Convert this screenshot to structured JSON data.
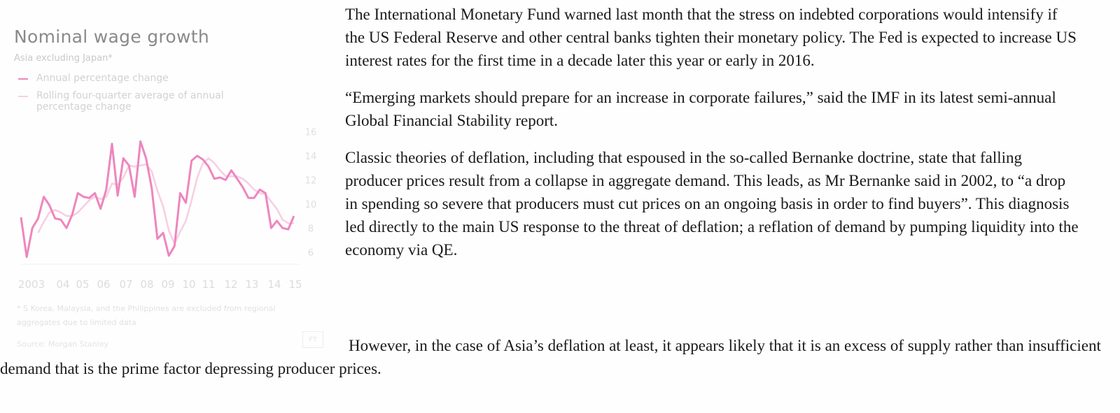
{
  "chart": {
    "title": "Nominal wage growth",
    "subtitle": "Asia excluding Japan*",
    "legend": [
      {
        "label": "Annual percentage change",
        "color": "#ee86bd"
      },
      {
        "label": "Rolling four-quarter average of annual percentage change",
        "color": "#f8cfe2"
      }
    ],
    "footnote": "* S Korea, Malaysia, and the Philippines are excluded from regional aggregates due to limited data",
    "source": "Source: Morgan Stanley",
    "logo": "FT"
  },
  "chart_data": {
    "type": "line",
    "title": "Nominal wage growth",
    "subtitle": "Asia excluding Japan*",
    "x_tick_labels": [
      "2003",
      "04",
      "05",
      "06",
      "07",
      "08",
      "09",
      "10",
      "11",
      "12",
      "13",
      "14",
      "15"
    ],
    "y_ticks": [
      6,
      8,
      10,
      12,
      14,
      16
    ],
    "ylim": [
      5,
      16.5
    ],
    "xlim": [
      2003,
      2015.25
    ],
    "y_axis_side": "right",
    "grid": false,
    "series": [
      {
        "name": "Annual percentage change",
        "color": "#ee86bd",
        "x": [
          2003,
          2003.25,
          2003.5,
          2003.75,
          2004,
          2004.25,
          2004.5,
          2004.75,
          2005,
          2005.25,
          2005.5,
          2005.75,
          2006,
          2006.25,
          2006.5,
          2006.75,
          2007,
          2007.25,
          2007.5,
          2007.75,
          2008,
          2008.25,
          2008.5,
          2008.75,
          2009,
          2009.25,
          2009.5,
          2009.75,
          2010,
          2010.25,
          2010.5,
          2010.75,
          2011,
          2011.25,
          2011.5,
          2011.75,
          2012,
          2012.25,
          2012.5,
          2012.75,
          2013,
          2013.25,
          2013.5,
          2013.75,
          2014,
          2014.25,
          2014.5,
          2014.75,
          2015
        ],
        "y": [
          8.9,
          5.6,
          8.0,
          8.8,
          10.6,
          9.9,
          8.8,
          8.7,
          8.0,
          9.1,
          10.9,
          10.6,
          10.5,
          10.9,
          9.6,
          11.2,
          15.0,
          10.7,
          13.8,
          13.2,
          10.6,
          15.2,
          13.8,
          11.3,
          7.1,
          7.6,
          5.7,
          6.5,
          10.9,
          10.1,
          13.6,
          14.0,
          13.7,
          13.1,
          12.1,
          12.2,
          12.0,
          12.8,
          12.1,
          11.4,
          10.5,
          10.5,
          11.2,
          10.9,
          8.0,
          8.6,
          8.0,
          7.9,
          9.0
        ]
      },
      {
        "name": "Rolling four-quarter average of annual percentage change",
        "color": "#f8cfe2",
        "x": [
          2003.75,
          2004,
          2004.25,
          2004.5,
          2004.75,
          2005,
          2005.25,
          2005.5,
          2005.75,
          2006,
          2006.25,
          2006.5,
          2006.75,
          2007,
          2007.25,
          2007.5,
          2007.75,
          2008,
          2008.25,
          2008.5,
          2008.75,
          2009,
          2009.25,
          2009.5,
          2009.75,
          2010,
          2010.25,
          2010.5,
          2010.75,
          2011,
          2011.25,
          2011.5,
          2011.75,
          2012,
          2012.25,
          2012.5,
          2012.75,
          2013,
          2013.25,
          2013.5,
          2013.75,
          2014,
          2014.25,
          2014.5,
          2014.75,
          2015
        ],
        "y": [
          7.6,
          8.5,
          9.3,
          9.5,
          9.3,
          9.0,
          9.0,
          9.3,
          9.8,
          10.3,
          10.6,
          10.4,
          10.6,
          11.7,
          11.6,
          12.2,
          13.2,
          13.1,
          13.2,
          13.3,
          12.7,
          11.1,
          9.8,
          7.8,
          6.7,
          7.7,
          8.6,
          10.3,
          12.2,
          13.4,
          13.8,
          13.4,
          12.8,
          12.3,
          12.3,
          12.3,
          12.1,
          11.7,
          11.2,
          10.9,
          10.8,
          10.2,
          9.6,
          8.7,
          8.4,
          8.4
        ]
      }
    ]
  },
  "article": {
    "paragraphs": [
      "The International Monetary Fund warned last month that the stress on indebted corporations would intensify if the US Federal Reserve and other central banks tighten their monetary policy. The Fed is expected to increase US interest rates for the first time in a decade later this year or early in 2016.",
      "“Emerging markets should prepare for an increase in corporate failures,” said the IMF in its latest semi-annual Global Financial Stability report.",
      "Classic theories of deflation, including that espoused in the so-called Bernanke doctrine, state that falling producer prices result from a collapse in aggregate demand. This leads, as Mr Bernanke said in 2002, to “a drop in spending so severe that producers must cut prices on an ongoing basis in order to find buyers”. This diagnosis led directly to the main US response to the threat of deflation; a reflation of demand by pumping liquidity into the economy via QE."
    ],
    "last_paragraph": "However, in the case of Asia’s deflation at least, it appears likely that it is an excess of supply rather than insufficient demand that is the prime factor depressing producer prices."
  }
}
